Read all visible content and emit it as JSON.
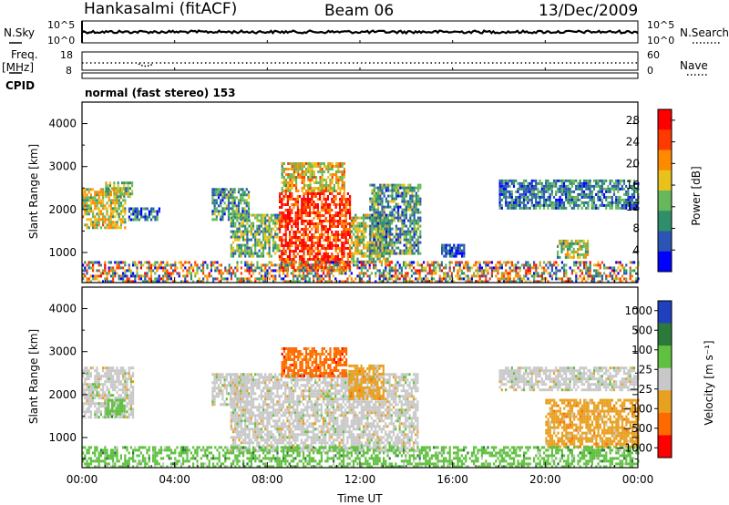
{
  "header": {
    "station": "Hankasalmi (fitACF)",
    "beam": "Beam 06",
    "date": "13/Dec/2009"
  },
  "noise_panel": {
    "left_label": "N.Sky",
    "left_ticks": [
      "10^5",
      "10^0"
    ],
    "right_ticks": [
      "10^5",
      "10^0"
    ],
    "right_label": "N.Search"
  },
  "freq_panel": {
    "left_label_1": "Freq.",
    "left_label_2": "[MHz]",
    "left_ticks": [
      "18",
      "8"
    ],
    "right_ticks": [
      "60",
      "0"
    ],
    "right_label": "Nave"
  },
  "cpid_panel": {
    "label": "CPID",
    "mode": "normal (fast stereo) 153"
  },
  "colors": {
    "power": [
      "#0000ff",
      "#2a55b4",
      "#2f8f6a",
      "#66b85a",
      "#e8c21a",
      "#ff8a00",
      "#ff3a00",
      "#ff0000"
    ],
    "velocity": [
      "#2040c0",
      "#2b7a3a",
      "#60c040",
      "#c8c8c8",
      "#e8a020",
      "#ff6a00",
      "#ff0000"
    ],
    "grid": "#000000"
  },
  "chart_data": [
    {
      "type": "heatmap",
      "panel": "power",
      "ylabel": "Slant Range [km]",
      "yticks": [
        "1000",
        "2000",
        "3000",
        "4000"
      ],
      "ylim": [
        300,
        4500
      ],
      "xlim": [
        0,
        24
      ],
      "colorbar": {
        "label": "Power [dB]",
        "ticks": [
          "4",
          "8",
          "12",
          "16",
          "20",
          "24",
          "28"
        ],
        "range": [
          0,
          30
        ]
      },
      "regions": [
        {
          "t0": 0.0,
          "t1": 1.9,
          "r0": 1550,
          "r1": 2500,
          "level": 0.55
        },
        {
          "t0": 1.0,
          "t1": 2.2,
          "r0": 2300,
          "r1": 2650,
          "level": 0.45
        },
        {
          "t0": 2.0,
          "t1": 3.3,
          "r0": 1750,
          "r1": 2050,
          "level": 0.2
        },
        {
          "t0": 5.6,
          "t1": 7.2,
          "r0": 1750,
          "r1": 2500,
          "level": 0.3
        },
        {
          "t0": 6.4,
          "t1": 8.5,
          "r0": 900,
          "r1": 1900,
          "level": 0.4
        },
        {
          "t0": 8.5,
          "t1": 11.6,
          "r0": 600,
          "r1": 2400,
          "level": 0.9
        },
        {
          "t0": 8.6,
          "t1": 11.3,
          "r0": 2400,
          "r1": 3100,
          "level": 0.6
        },
        {
          "t0": 11.6,
          "t1": 13.4,
          "r0": 800,
          "r1": 1900,
          "level": 0.5
        },
        {
          "t0": 12.4,
          "t1": 14.6,
          "r0": 1000,
          "r1": 2600,
          "level": 0.3
        },
        {
          "t0": 15.5,
          "t1": 16.5,
          "r0": 900,
          "r1": 1200,
          "level": 0.1
        },
        {
          "t0": 18.0,
          "t1": 24.0,
          "r0": 2000,
          "r1": 2700,
          "level": 0.25
        },
        {
          "t0": 20.5,
          "t1": 21.8,
          "r0": 900,
          "r1": 1300,
          "level": 0.45
        },
        {
          "t0": 0.0,
          "t1": 24.0,
          "r0": 300,
          "r1": 800,
          "level": 0.4
        }
      ]
    },
    {
      "type": "heatmap",
      "panel": "velocity",
      "ylabel": "Slant Range [km]",
      "yticks": [
        "1000",
        "2000",
        "3000",
        "4000"
      ],
      "ylim": [
        300,
        4500
      ],
      "xlim": [
        0,
        24
      ],
      "xticks": [
        "00:00",
        "04:00",
        "08:00",
        "12:00",
        "16:00",
        "20:00",
        "00:00"
      ],
      "xlabel": "Time UT",
      "colorbar": {
        "label": "Velocity [m s⁻¹]",
        "ticks": [
          "1000",
          "500",
          "100",
          "25",
          "−25",
          "−100",
          "−500",
          "−1000"
        ]
      },
      "regions": [
        {
          "t0": 0.0,
          "t1": 2.2,
          "r0": 1500,
          "r1": 2650,
          "color": 3
        },
        {
          "t0": 1.0,
          "t1": 1.8,
          "r0": 1500,
          "r1": 1900,
          "color": 2
        },
        {
          "t0": 5.6,
          "t1": 7.2,
          "r0": 1750,
          "r1": 2500,
          "color": 3
        },
        {
          "t0": 6.4,
          "t1": 14.5,
          "r0": 700,
          "r1": 2500,
          "color": 3
        },
        {
          "t0": 8.6,
          "t1": 11.4,
          "r0": 2400,
          "r1": 3100,
          "color": 5
        },
        {
          "t0": 11.5,
          "t1": 13.0,
          "r0": 1900,
          "r1": 2700,
          "color": 4
        },
        {
          "t0": 18.0,
          "t1": 24.0,
          "r0": 2100,
          "r1": 2650,
          "color": 3
        },
        {
          "t0": 20.0,
          "t1": 24.0,
          "r0": 800,
          "r1": 1900,
          "color": 4
        },
        {
          "t0": 0.0,
          "t1": 24.0,
          "r0": 300,
          "r1": 800,
          "color": 2
        }
      ]
    }
  ]
}
